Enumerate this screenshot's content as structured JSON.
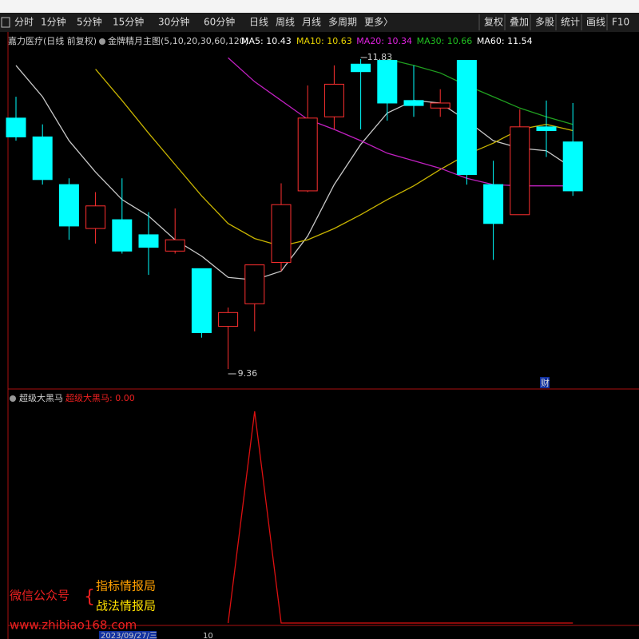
{
  "toolbar": {
    "left": [
      "分时",
      "1分钟",
      "5分钟",
      "15分钟",
      "30分钟",
      "60分钟",
      "日线",
      "周线",
      "月线",
      "多周期",
      "更多〉"
    ],
    "right": [
      "复权",
      "叠加",
      "多股",
      "统计",
      "画线",
      "F10"
    ]
  },
  "legend": {
    "stock": "嘉力医疗(日线 前复权)",
    "indicator": "金牌精月主图(5,10,20,30,60,120)",
    "ma": [
      {
        "text": "MA5: 10.43",
        "color": "#ffffff"
      },
      {
        "text": "MA10: 10.63",
        "color": "#e8d400"
      },
      {
        "text": "MA20: 10.34",
        "color": "#e020e0"
      },
      {
        "text": "MA30: 10.66",
        "color": "#20c020"
      },
      {
        "text": "MA60: 11.54",
        "color": "#ffffff"
      }
    ]
  },
  "chart_data": {
    "type": "candlestick",
    "open": [
      11.36,
      11.21,
      10.83,
      10.48,
      10.55,
      10.43,
      10.3,
      10.16,
      9.7,
      9.88,
      10.21,
      10.78,
      11.37,
      11.79,
      11.82,
      11.5,
      11.44,
      11.82,
      10.83,
      10.59,
      11.29,
      11.17
    ],
    "close": [
      11.21,
      10.87,
      10.5,
      10.66,
      10.3,
      10.33,
      10.39,
      9.65,
      9.81,
      10.19,
      10.67,
      11.36,
      11.63,
      11.73,
      11.48,
      11.46,
      11.48,
      10.91,
      10.52,
      11.29,
      11.26,
      10.78
    ],
    "high": [
      11.53,
      11.31,
      10.88,
      10.77,
      10.88,
      10.61,
      10.64,
      10.16,
      9.85,
      10.19,
      10.84,
      11.62,
      11.78,
      11.83,
      11.82,
      11.78,
      11.59,
      11.82,
      11.02,
      11.43,
      11.5,
      11.48
    ],
    "low": [
      11.18,
      10.83,
      10.39,
      10.36,
      10.28,
      10.11,
      10.28,
      9.61,
      9.36,
      9.66,
      10.14,
      10.77,
      11.27,
      11.27,
      11.34,
      11.37,
      11.37,
      10.83,
      10.23,
      10.59,
      11.05,
      10.74
    ],
    "up_color": "#ff3030",
    "down_color": "#00ffff",
    "lines": [
      {
        "color": "#c8c8c8",
        "values": [
          11.78,
          11.53,
          11.18,
          10.93,
          10.71,
          10.58,
          10.39,
          10.26,
          10.09,
          10.07,
          10.14,
          10.42,
          10.83,
          11.15,
          11.4,
          11.5,
          11.48,
          11.34,
          11.18,
          11.12,
          11.1,
          10.96
        ]
      },
      {
        "color": "#c8b400",
        "values": [
          null,
          null,
          null,
          11.75,
          11.5,
          11.24,
          10.99,
          10.74,
          10.52,
          10.4,
          10.34,
          10.39,
          10.48,
          10.59,
          10.71,
          10.82,
          10.95,
          11.07,
          11.16,
          11.27,
          11.31,
          11.26
        ]
      },
      {
        "color": "#c020c0",
        "values": [
          null,
          null,
          null,
          null,
          null,
          null,
          null,
          null,
          11.84,
          11.65,
          11.5,
          11.35,
          11.27,
          11.18,
          11.08,
          11.02,
          10.96,
          10.88,
          10.83,
          10.82,
          10.82,
          10.82
        ]
      },
      {
        "color": "#20a020",
        "values": [
          null,
          null,
          null,
          null,
          null,
          null,
          null,
          null,
          null,
          null,
          null,
          null,
          null,
          null,
          11.83,
          11.78,
          11.72,
          11.62,
          11.53,
          11.44,
          11.37,
          11.31
        ]
      }
    ],
    "high_label": "11.83",
    "low_label": "9.36",
    "event_marker": "财"
  },
  "sub_chart": {
    "title": "超级大黑马",
    "value_label": "超级大黑马: 0.00",
    "color": "#dd1010",
    "values": [
      null,
      null,
      null,
      null,
      null,
      null,
      null,
      null,
      0,
      1,
      0,
      0,
      0,
      0,
      0,
      0,
      0,
      0,
      0,
      0,
      0,
      0
    ]
  },
  "x_axis": {
    "labels": [
      "2023/09/27/三",
      "10"
    ]
  },
  "watermark": {
    "left": "微信公众号",
    "right_top": "指标情报局",
    "right_bottom": "战法情报局",
    "url": "www.zhibiao168.com"
  }
}
